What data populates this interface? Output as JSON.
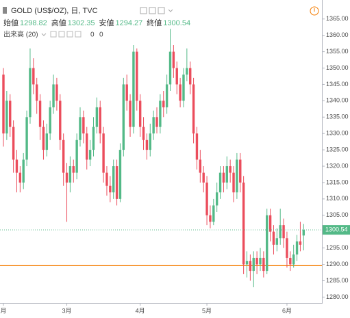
{
  "chart_data": {
    "type": "candlestick",
    "title": "GOLD (US$/OZ), 日, TVC",
    "ohlc_labels": [
      "始値",
      "高値",
      "安値",
      "終値"
    ],
    "volume": {
      "label": "出来高 (20)",
      "values": [
        0,
        0
      ],
      "colors": [
        "#53b987",
        "#f57c00"
      ]
    },
    "up_color": "#53b987",
    "down_color": "#eb4d5c",
    "categories": [
      "月",
      null,
      null,
      null,
      null,
      null,
      null,
      null,
      null,
      null,
      null,
      null,
      null,
      null,
      null,
      null,
      null,
      null,
      null,
      "3月",
      null,
      null,
      null,
      null,
      null,
      null,
      null,
      null,
      null,
      null,
      null,
      null,
      null,
      null,
      null,
      null,
      null,
      null,
      null,
      null,
      null,
      "4月",
      null,
      null,
      null,
      null,
      null,
      null,
      null,
      null,
      null,
      null,
      null,
      null,
      null,
      null,
      null,
      null,
      null,
      null,
      null,
      "5月",
      null,
      null,
      null,
      null,
      null,
      null,
      null,
      null,
      null,
      null,
      null,
      null,
      null,
      null,
      null,
      null,
      null,
      null,
      null,
      null,
      null,
      null,
      null,
      "6月",
      null,
      null,
      null,
      null,
      null
    ],
    "open": [
      1348,
      1330,
      1340,
      1332,
      1322,
      1318,
      1315,
      1322,
      1335,
      1350,
      1345,
      1340,
      1332,
      1325,
      1330,
      1338,
      1345,
      1340,
      1328,
      1318,
      1315,
      1320,
      1318,
      1328,
      1335,
      1330,
      1322,
      1325,
      1332,
      1338,
      1330,
      1318,
      1314,
      1312,
      1320,
      1310,
      1325,
      1345,
      1340,
      1332,
      1355,
      1340,
      1332,
      1328,
      1325,
      1330,
      1335,
      1332,
      1340,
      1338,
      1345,
      1355,
      1350,
      1345,
      1340,
      1348,
      1350,
      1345,
      1330,
      1322,
      1318,
      1315,
      1305,
      1303,
      1308,
      1312,
      1318,
      1315,
      1320,
      1318,
      1312,
      1322,
      1315,
      1290,
      1291,
      1288,
      1292,
      1290,
      1292,
      1288,
      1305,
      1300,
      1296,
      1298,
      1302,
      1298,
      1292,
      1290,
      1293,
      1297,
      1298.82
    ],
    "high": [
      1350,
      1343,
      1342,
      1334,
      1325,
      1320,
      1324,
      1337,
      1356,
      1353,
      1347,
      1342,
      1334,
      1333,
      1340,
      1348,
      1347,
      1342,
      1330,
      1321,
      1323,
      1322,
      1330,
      1338,
      1337,
      1332,
      1328,
      1335,
      1341,
      1340,
      1332,
      1320,
      1317,
      1322,
      1322,
      1327,
      1347,
      1348,
      1342,
      1357,
      1356,
      1342,
      1335,
      1330,
      1333,
      1337,
      1338,
      1342,
      1343,
      1348,
      1362,
      1357,
      1352,
      1347,
      1350,
      1356,
      1352,
      1347,
      1332,
      1325,
      1320,
      1317,
      1308,
      1310,
      1315,
      1320,
      1320,
      1323,
      1322,
      1320,
      1324,
      1324,
      1317,
      1294,
      1293,
      1294,
      1294,
      1295,
      1294,
      1307,
      1307,
      1302,
      1301,
      1307,
      1304,
      1300,
      1294,
      1296,
      1299,
      1303,
      1302.35
    ],
    "low": [
      1326,
      1328,
      1329,
      1318,
      1312,
      1312,
      1313,
      1320,
      1333,
      1342,
      1336,
      1328,
      1322,
      1323,
      1328,
      1336,
      1337,
      1325,
      1314,
      1303,
      1312,
      1315,
      1316,
      1326,
      1327,
      1319,
      1320,
      1323,
      1330,
      1327,
      1315,
      1311,
      1309,
      1310,
      1308,
      1309,
      1323,
      1337,
      1329,
      1330,
      1337,
      1329,
      1325,
      1322,
      1323,
      1328,
      1330,
      1330,
      1335,
      1336,
      1343,
      1347,
      1342,
      1338,
      1338,
      1346,
      1342,
      1327,
      1319,
      1315,
      1312,
      1302,
      1301,
      1302,
      1306,
      1310,
      1312,
      1313,
      1315,
      1309,
      1310,
      1312,
      1287,
      1286,
      1285,
      1283,
      1287,
      1288,
      1286,
      1287,
      1297,
      1293,
      1294,
      1296,
      1295,
      1289,
      1288,
      1289,
      1291,
      1294,
      1294.27
    ],
    "close": [
      1330,
      1340,
      1332,
      1322,
      1318,
      1315,
      1322,
      1335,
      1350,
      1345,
      1340,
      1332,
      1325,
      1330,
      1338,
      1345,
      1340,
      1328,
      1318,
      1315,
      1320,
      1318,
      1328,
      1335,
      1330,
      1322,
      1325,
      1332,
      1338,
      1330,
      1318,
      1314,
      1312,
      1320,
      1310,
      1325,
      1345,
      1340,
      1332,
      1355,
      1340,
      1332,
      1328,
      1325,
      1330,
      1335,
      1332,
      1340,
      1338,
      1345,
      1355,
      1350,
      1345,
      1340,
      1348,
      1350,
      1345,
      1330,
      1322,
      1318,
      1315,
      1305,
      1303,
      1308,
      1312,
      1318,
      1315,
      1320,
      1318,
      1312,
      1322,
      1315,
      1290,
      1291,
      1288,
      1292,
      1290,
      1292,
      1288,
      1305,
      1300,
      1296,
      1298,
      1302,
      1298,
      1292,
      1290,
      1293,
      1297,
      1296,
      1300.54
    ],
    "hline": {
      "value": 1289.6,
      "color": "#f57c00"
    },
    "ylim": [
      1278.2,
      1370.8
    ],
    "yticks": [
      {
        "value": 1280,
        "label": "1280.00"
      },
      {
        "value": 1285,
        "label": "1285.00"
      },
      {
        "value": 1290,
        "label": "1290.00"
      },
      {
        "value": 1295,
        "label": "1295.00"
      },
      {
        "value": 1300,
        "label": "1300.00"
      },
      {
        "value": 1305,
        "label": "1305.00"
      },
      {
        "value": 1310,
        "label": "1310.00"
      },
      {
        "value": 1315,
        "label": "1315.00"
      },
      {
        "value": 1320,
        "label": "1320.00"
      },
      {
        "value": 1325,
        "label": "1325.00"
      },
      {
        "value": 1330,
        "label": "1330.00"
      },
      {
        "value": 1335,
        "label": "1335.00"
      },
      {
        "value": 1340,
        "label": "1340.00"
      },
      {
        "value": 1345,
        "label": "1345.00"
      },
      {
        "value": 1350,
        "label": "1350.00"
      },
      {
        "value": 1355,
        "label": "1355.00"
      },
      {
        "value": 1360,
        "label": "1360.00"
      },
      {
        "value": 1365,
        "label": "1365.00"
      }
    ]
  }
}
